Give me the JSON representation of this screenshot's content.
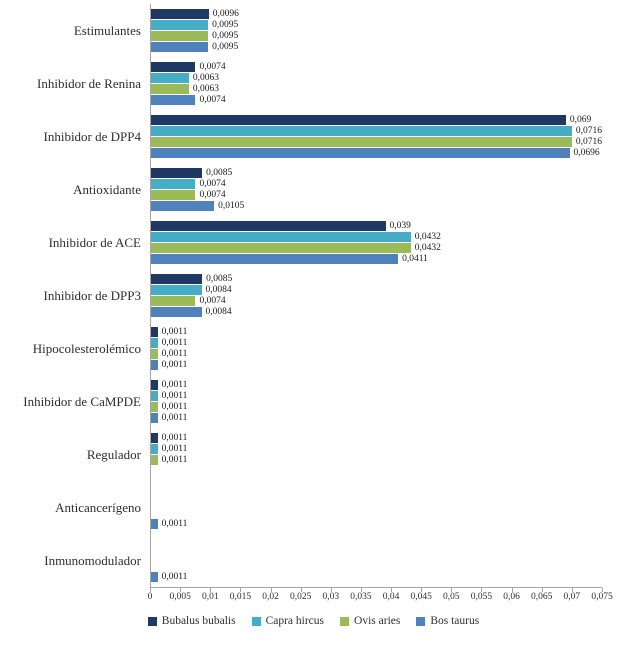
{
  "chart_data": {
    "type": "bar",
    "orientation": "horizontal",
    "title": "",
    "xlabel": "",
    "ylabel": "",
    "xlim": [
      0,
      0.075
    ],
    "decimal_separator": ",",
    "grid": false,
    "data_labels": true,
    "legend_position": "bottom",
    "axis_color": "#a6a6a6",
    "categories": [
      "Estimulantes",
      "Inhibidor de Renina",
      "Inhibidor de DPP4",
      "Antioxidante",
      "Inhibidor de ACE",
      "Inhibidor de DPP3",
      "Hipocolesterolémico",
      "Inhibidor de CaMPDE",
      "Regulador",
      "Anticancerígeno",
      "Inmunomodulador"
    ],
    "series": [
      {
        "name": "Bubalus bubalis",
        "color": "#1f3864",
        "values": [
          0.0096,
          0.0074,
          0.069,
          0.0085,
          0.039,
          0.0085,
          0.0011,
          0.0011,
          0.0011,
          null,
          null
        ]
      },
      {
        "name": "Capra hircus",
        "color": "#45aec6",
        "values": [
          0.0095,
          0.0063,
          0.0716,
          0.0074,
          0.0432,
          0.0084,
          0.0011,
          0.0011,
          0.0011,
          null,
          null
        ]
      },
      {
        "name": "Ovis aries",
        "color": "#9bbb59",
        "values": [
          0.0095,
          0.0063,
          0.0716,
          0.0074,
          0.0432,
          0.0074,
          0.0011,
          0.0011,
          0.0011,
          null,
          null
        ]
      },
      {
        "name": "Bos taurus",
        "color": "#4f81bd",
        "values": [
          0.0095,
          0.0074,
          0.0696,
          0.0105,
          0.0411,
          0.0084,
          0.0011,
          0.0011,
          null,
          0.0011,
          0.0011
        ]
      }
    ],
    "x_ticks": [
      "0",
      "0,005",
      "0,01",
      "0,015",
      "0,02",
      "0,025",
      "0,03",
      "0,035",
      "0,04",
      "0,045",
      "0,05",
      "0,055",
      "0,06",
      "0,065",
      "0,07",
      "0,075"
    ]
  }
}
